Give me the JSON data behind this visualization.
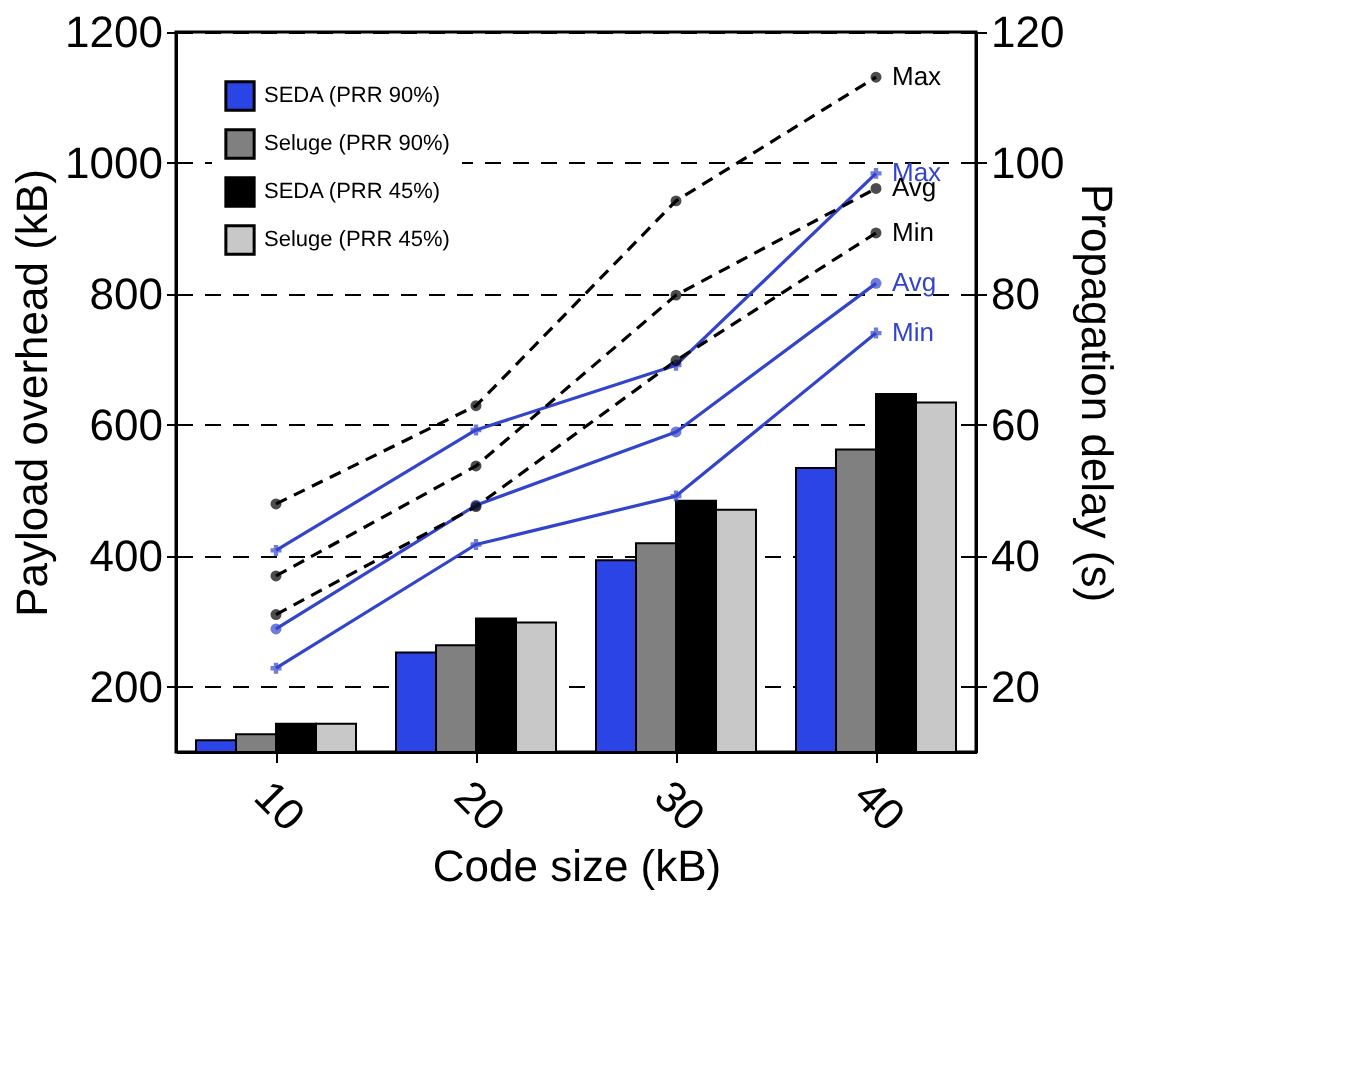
{
  "chart_data": {
    "type": "bar",
    "categories": [
      "10",
      "20",
      "30",
      "40"
    ],
    "xlabel": "Code size (kB)",
    "ylabel": "Payload overhead (kB)",
    "y2label": "Propagation delay (s)",
    "ylim": [
      100,
      1200
    ],
    "yticks": [
      200,
      400,
      600,
      800,
      1000,
      1200
    ],
    "y2lim": [
      10,
      120
    ],
    "y2ticks": [
      20,
      40,
      60,
      80,
      100,
      120
    ],
    "grid": "y",
    "legend": "top left",
    "series": [
      {
        "name": "SEDA (PRR 90%)",
        "color": "#2a44e6",
        "values": [
          118,
          252,
          393,
          534
        ]
      },
      {
        "name": "Seluge (PRR 90%)",
        "color": "#808080",
        "values": [
          127,
          263,
          419,
          562
        ]
      },
      {
        "name": "SEDA (PRR 45%)",
        "color": "#000000",
        "values": [
          143,
          304,
          484,
          647
        ]
      },
      {
        "name": "Seluge (PRR 45%)",
        "color": "#c8c8c8",
        "values": [
          143,
          298,
          470,
          634
        ]
      },
      {
        "name": "Max",
        "type": "line",
        "axis": "y2",
        "color": "#3344cc",
        "line_style": "solid",
        "marker": "cross",
        "values": [
          40.8,
          59.2,
          69.1,
          98.4
        ]
      },
      {
        "name": "Avg",
        "type": "line",
        "axis": "y2",
        "color": "#3344cc",
        "line_style": "solid",
        "marker": "circle",
        "values": [
          28.8,
          47.7,
          58.9,
          81.6
        ]
      },
      {
        "name": "Min",
        "type": "line",
        "axis": "y2",
        "color": "#3344cc",
        "line_style": "solid",
        "marker": "cross",
        "values": [
          22.8,
          41.7,
          49.1,
          74.0
        ]
      },
      {
        "name": "Max",
        "type": "line",
        "axis": "y2",
        "color": "#000000",
        "line_style": "dashed",
        "marker": "circle",
        "values": [
          47.9,
          62.9,
          94.2,
          113.1
        ]
      },
      {
        "name": "Avg",
        "type": "line",
        "axis": "y2",
        "color": "#000000",
        "line_style": "dashed",
        "marker": "circle",
        "values": [
          36.9,
          53.7,
          79.8,
          96.1
        ]
      },
      {
        "name": "Min",
        "type": "line",
        "axis": "y2",
        "color": "#000000",
        "line_style": "dashed",
        "marker": "circle",
        "values": [
          31.0,
          47.5,
          69.8,
          89.3
        ]
      }
    ]
  }
}
